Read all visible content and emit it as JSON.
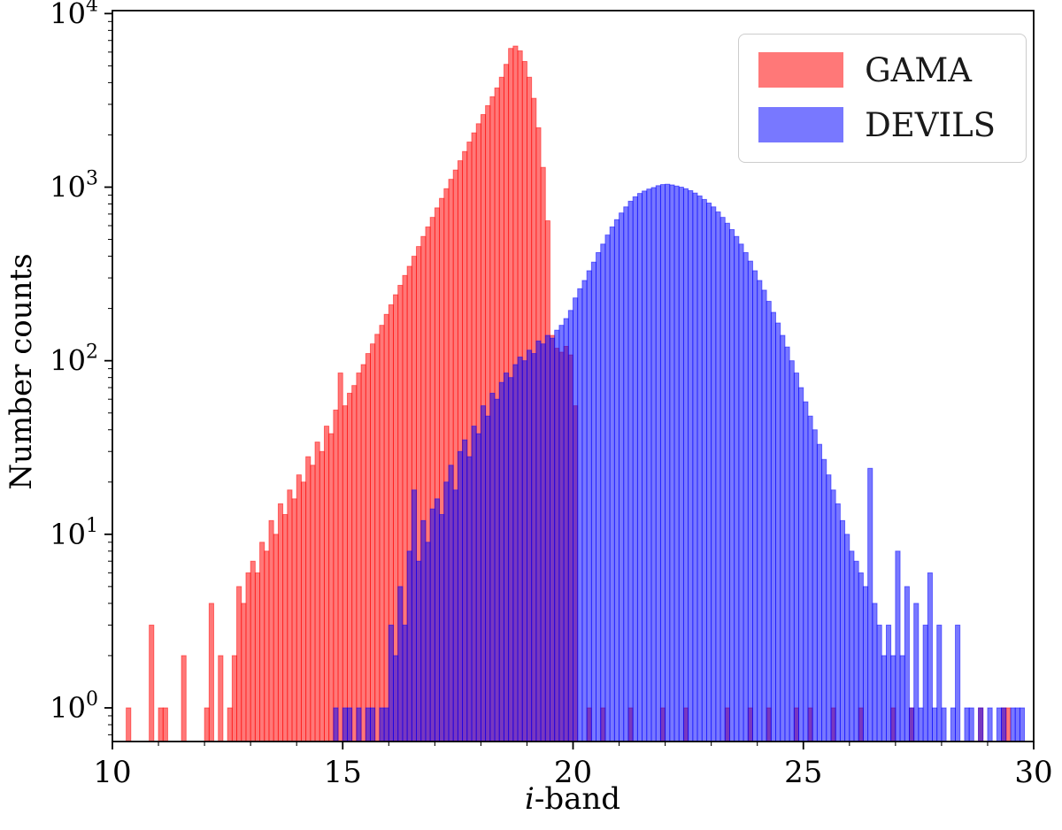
{
  "figure": {
    "background": "#ffffff"
  },
  "chart_data": {
    "type": "bar",
    "subtype": "overlapping-histogram",
    "title": "",
    "xlabel_italic": "i",
    "xlabel_rest": "-band",
    "ylabel": "Number counts",
    "x_axis": {
      "min": 10,
      "max": 30,
      "major_ticks": [
        10,
        15,
        20,
        25,
        30
      ],
      "minor_tick_step": 1
    },
    "y_axis": {
      "scale": "log",
      "min": 0.64,
      "max": 10400,
      "major_tick_base": 10,
      "major_tick_exponents": [
        0,
        1,
        2,
        3,
        4
      ]
    },
    "bins": {
      "start": 10.0,
      "width": 0.1,
      "count": 200
    },
    "legend": {
      "position": "upper right"
    },
    "frame_color": "#000000",
    "series": [
      {
        "name": "GAMA",
        "color": "rgba(255,0,0,0.53)",
        "values": [
          0,
          0,
          0,
          1,
          0,
          0,
          0,
          0,
          3,
          0,
          1,
          1,
          0,
          0,
          0,
          2,
          0,
          0,
          0,
          0,
          1,
          4,
          0,
          2,
          0,
          1,
          2,
          5,
          4,
          6,
          7,
          6,
          9,
          8,
          12,
          10,
          15,
          13,
          18,
          16,
          22,
          20,
          28,
          25,
          34,
          30,
          42,
          38,
          52,
          85,
          55,
          65,
          72,
          85,
          95,
          110,
          125,
          142,
          160,
          185,
          210,
          240,
          272,
          310,
          350,
          400,
          455,
          520,
          590,
          670,
          760,
          862,
          980,
          1110,
          1255,
          1420,
          1605,
          1820,
          2055,
          2320,
          2620,
          2950,
          3320,
          3730,
          4300,
          5100,
          6300,
          6500,
          6100,
          5300,
          4300,
          3250,
          2200,
          1300,
          640,
          140,
          118,
          112,
          121,
          108,
          55,
          0,
          0,
          1,
          0,
          0,
          1,
          0,
          0,
          0,
          0,
          0,
          1,
          0,
          0,
          0,
          0,
          0,
          0,
          1,
          0,
          0,
          0,
          0,
          1,
          0,
          0,
          0,
          0,
          0,
          0,
          0,
          0,
          1,
          0,
          0,
          0,
          0,
          1,
          0,
          0,
          0,
          1,
          0,
          0,
          0,
          0,
          0,
          1,
          0,
          0,
          1,
          0,
          0,
          0,
          0,
          1,
          0,
          0,
          0,
          0,
          0,
          1,
          0,
          0,
          0,
          0,
          0,
          0,
          1,
          0,
          0,
          0,
          1,
          0,
          0,
          0,
          0,
          0,
          0,
          0,
          0,
          0,
          0,
          0,
          0,
          0,
          0,
          1,
          0,
          0,
          0,
          0,
          1,
          1,
          0,
          0,
          0,
          0,
          0
        ]
      },
      {
        "name": "DEVILS",
        "color": "rgba(0,0,255,0.53)",
        "values": [
          0,
          0,
          0,
          0,
          0,
          0,
          0,
          0,
          0,
          0,
          0,
          0,
          0,
          0,
          0,
          0,
          0,
          0,
          0,
          0,
          0,
          0,
          0,
          0,
          0,
          0,
          0,
          0,
          0,
          0,
          0,
          0,
          0,
          0,
          0,
          0,
          0,
          0,
          0,
          0,
          0,
          0,
          0,
          0,
          0,
          0,
          0,
          0,
          1,
          0,
          1,
          1,
          0,
          1,
          0,
          1,
          1,
          0,
          1,
          1,
          3,
          2,
          5,
          3,
          8,
          18,
          7,
          12,
          9,
          14,
          16,
          13,
          20,
          25,
          18,
          30,
          35,
          28,
          42,
          38,
          55,
          48,
          65,
          60,
          75,
          85,
          80,
          95,
          105,
          100,
          115,
          110,
          130,
          125,
          140,
          135,
          150,
          160,
          175,
          195,
          230,
          260,
          290,
          330,
          370,
          420,
          470,
          530,
          590,
          650,
          710,
          770,
          830,
          880,
          920,
          950,
          975,
          995,
          1020,
          1035,
          1040,
          1030,
          1015,
          1000,
          980,
          955,
          925,
          890,
          850,
          810,
          770,
          720,
          670,
          620,
          570,
          520,
          470,
          420,
          375,
          330,
          290,
          255,
          220,
          190,
          165,
          140,
          120,
          100,
          85,
          70,
          58,
          48,
          40,
          33,
          27,
          22,
          18,
          15,
          12,
          10,
          8,
          7,
          6,
          5,
          24,
          4,
          3,
          2,
          3,
          2,
          8,
          2,
          5,
          1,
          4,
          1,
          3,
          6,
          1,
          3,
          1,
          0,
          1,
          3,
          0,
          1,
          1,
          0,
          1,
          0,
          1,
          0,
          1,
          1,
          0,
          1,
          1,
          1,
          0,
          0
        ]
      }
    ]
  }
}
